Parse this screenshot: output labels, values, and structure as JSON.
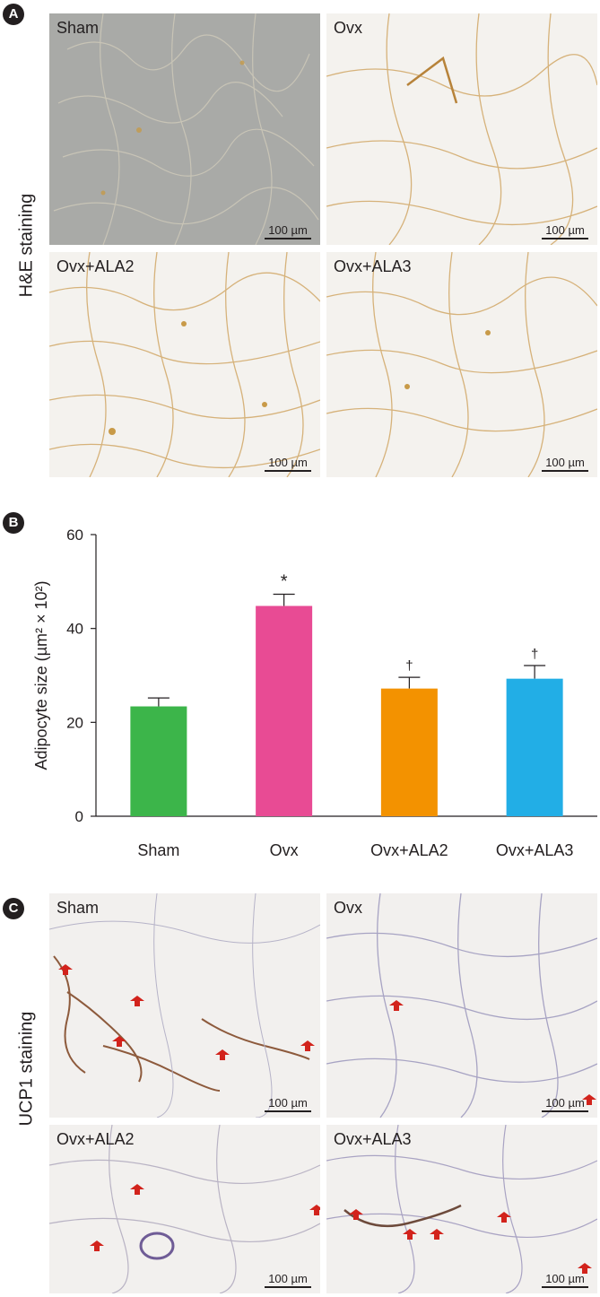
{
  "panel_a": {
    "badge": "A",
    "row_label": "H&E staining",
    "images": [
      {
        "label": "Sham",
        "scale": "100 µm"
      },
      {
        "label": "Ovx",
        "scale": "100 µm"
      },
      {
        "label": "Ovx+ALA2",
        "scale": "100 µm"
      },
      {
        "label": "Ovx+ALA3",
        "scale": "100 µm"
      }
    ]
  },
  "panel_b": {
    "badge": "B"
  },
  "panel_c": {
    "badge": "C",
    "row_label": "UCP1 staining",
    "images": [
      {
        "label": "Sham",
        "scale": "100 µm"
      },
      {
        "label": "Ovx",
        "scale": "100 µm"
      },
      {
        "label": "Ovx+ALA2",
        "scale": "100 µm"
      },
      {
        "label": "Ovx+ALA3",
        "scale": "100 µm"
      }
    ]
  },
  "chart_data": {
    "type": "bar",
    "categories": [
      "Sham",
      "Ovx",
      "Ovx+ALA2",
      "Ovx+ALA3"
    ],
    "values": [
      23.4,
      44.8,
      27.2,
      29.3
    ],
    "errors": [
      1.8,
      2.5,
      2.4,
      2.8
    ],
    "annotations": [
      "",
      "*",
      "†",
      "†"
    ],
    "colors": [
      "#3cb54a",
      "#e84b94",
      "#f39200",
      "#22aee6"
    ],
    "ylabel": "Adipocyte size (µm² × 10²)",
    "ylim": [
      0,
      60
    ],
    "yticks": [
      0,
      20,
      40,
      60
    ],
    "grid": false
  }
}
